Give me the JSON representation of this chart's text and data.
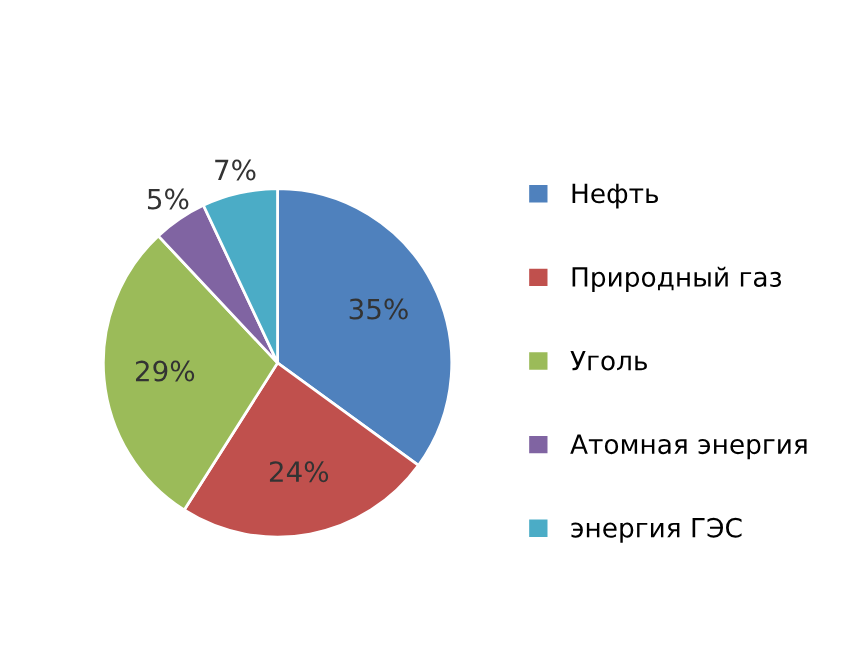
{
  "chart_data": {
    "type": "pie",
    "categories": [
      "Нефть",
      "Природный газ",
      "Уголь",
      "Атомная энергия",
      "энергия ГЭС"
    ],
    "values": [
      35,
      24,
      29,
      5,
      7
    ],
    "colors": [
      "#4f81bd",
      "#c0504d",
      "#9bbb59",
      "#8064a2",
      "#4bacc6"
    ],
    "value_labels": [
      "35%",
      "24%",
      "29%",
      "5%",
      "7%"
    ],
    "legend": "right"
  }
}
